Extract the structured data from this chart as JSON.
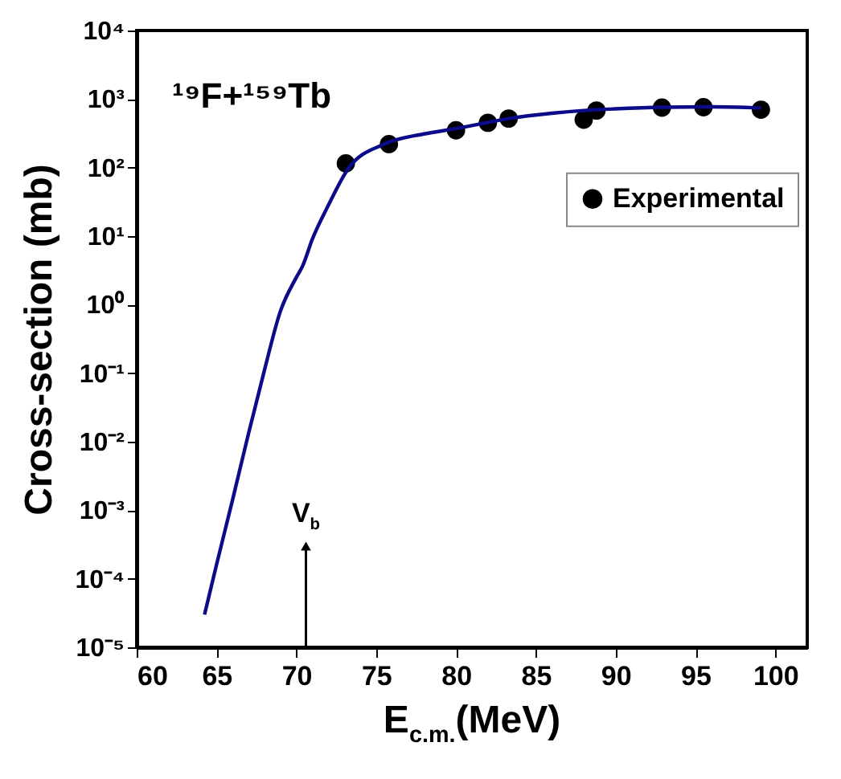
{
  "chart_data": {
    "type": "scatter",
    "xlabel": "E$_{c.m.}$(MeV)",
    "ylabel": "Cross-section (mb)",
    "annotations": [
      "¹⁹F+¹⁵⁹Tb",
      {
        "text": "V$_{b}$",
        "x": 70.6,
        "y": 0.0003
      }
    ],
    "log": "y",
    "grid": false,
    "legend": "right",
    "marker": "circle",
    "xlim": [
      60,
      102
    ],
    "xticks": [
      60,
      65,
      70,
      75,
      80,
      85,
      90,
      95,
      100
    ],
    "ylim": [
      1e-05,
      10000
    ],
    "yticks": [
      {
        "value": 1e-05,
        "label": "10⁻⁵"
      },
      {
        "value": 0.0001,
        "label": "10⁻⁴"
      },
      {
        "value": 0.001,
        "label": "10⁻³"
      },
      {
        "value": 0.01,
        "label": "10⁻²"
      },
      {
        "value": 0.1,
        "label": "10⁻¹"
      },
      {
        "value": 1,
        "label": "10⁰"
      },
      {
        "value": 10,
        "label": "10¹"
      },
      {
        "value": 100,
        "label": "10²"
      },
      {
        "value": 1000,
        "label": "10³"
      },
      {
        "value": 10000,
        "label": "10⁴"
      }
    ],
    "series": [
      {
        "name": "Experimental",
        "type": "scatter",
        "color": "#000000",
        "x": [
          73.1,
          75.8,
          80.0,
          82.0,
          83.3,
          88.0,
          88.8,
          92.9,
          95.5,
          99.1
        ],
        "values": [
          115,
          220,
          350,
          450,
          520,
          500,
          680,
          750,
          760,
          700
        ]
      },
      {
        "type": "line",
        "color": "#0c0c8a",
        "line_style": "solid",
        "marker": "none",
        "x": [
          64.25,
          65,
          66,
          67,
          68,
          69,
          70,
          70.4,
          71,
          72,
          73.3,
          75.5,
          78,
          80,
          83.3,
          86,
          88,
          90,
          93,
          96,
          99.1
        ],
        "values": [
          3e-05,
          0.00016,
          0.0014,
          0.013,
          0.11,
          0.8,
          2.5,
          3.7,
          9,
          28,
          100,
          220,
          310,
          370,
          520,
          620,
          680,
          720,
          760,
          770,
          740
        ]
      }
    ]
  }
}
